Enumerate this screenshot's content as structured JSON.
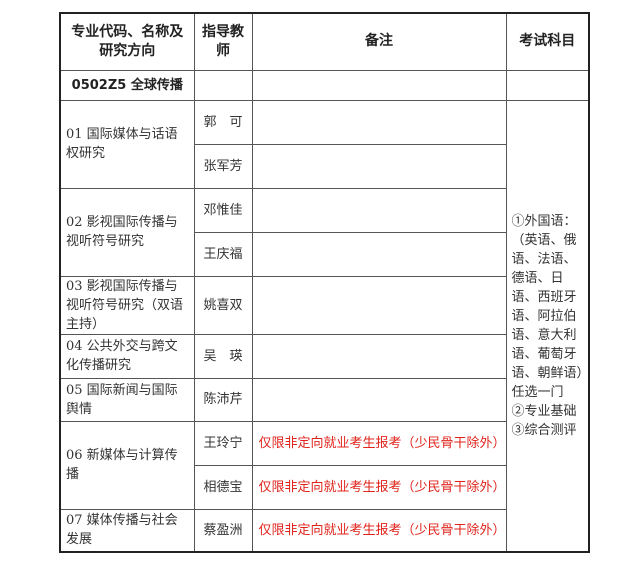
{
  "header": {
    "col1": "专业代码、名称及研究方向",
    "col2": "指导教师",
    "col3": "备注",
    "col4": "考试科目"
  },
  "major": "0502Z5 全球传播",
  "directions": [
    {
      "name": "01 国际媒体与话语权研究",
      "advisors": [
        "郭　可",
        "张军芳"
      ],
      "notes": [
        "",
        ""
      ]
    },
    {
      "name": "02 影视国际传播与视听符号研究",
      "advisors": [
        "邓惟佳",
        "王庆福"
      ],
      "notes": [
        "",
        ""
      ]
    },
    {
      "name": "03 影视国际传播与视听符号研究（双语主持）",
      "advisors": [
        "姚喜双"
      ],
      "notes": [
        ""
      ]
    },
    {
      "name": "04 公共外交与跨文化传播研究",
      "advisors": [
        "吴　瑛"
      ],
      "notes": [
        ""
      ]
    },
    {
      "name": "05 国际新闻与国际舆情",
      "advisors": [
        "陈沛芹"
      ],
      "notes": [
        ""
      ]
    },
    {
      "name": "06 新媒体与计算传播",
      "advisors": [
        "王玲宁",
        "相德宝"
      ],
      "notes": [
        "仅限非定向就业考生报考（少民骨干除外）",
        "仅限非定向就业考生报考（少民骨干除外）"
      ]
    },
    {
      "name": "07 媒体传播与社会发展",
      "advisors": [
        "蔡盈洲"
      ],
      "notes": [
        "仅限非定向就业考生报考（少民骨干除外）"
      ]
    }
  ],
  "exam": [
    "①外国语：（英语、俄语、法语、德语、日语、西班牙语、阿拉伯语、意大利语、葡萄牙语、朝鲜语）任选一门",
    "②专业基础",
    "③综合测评"
  ],
  "colors": {
    "note_red": "#e0241c"
  }
}
